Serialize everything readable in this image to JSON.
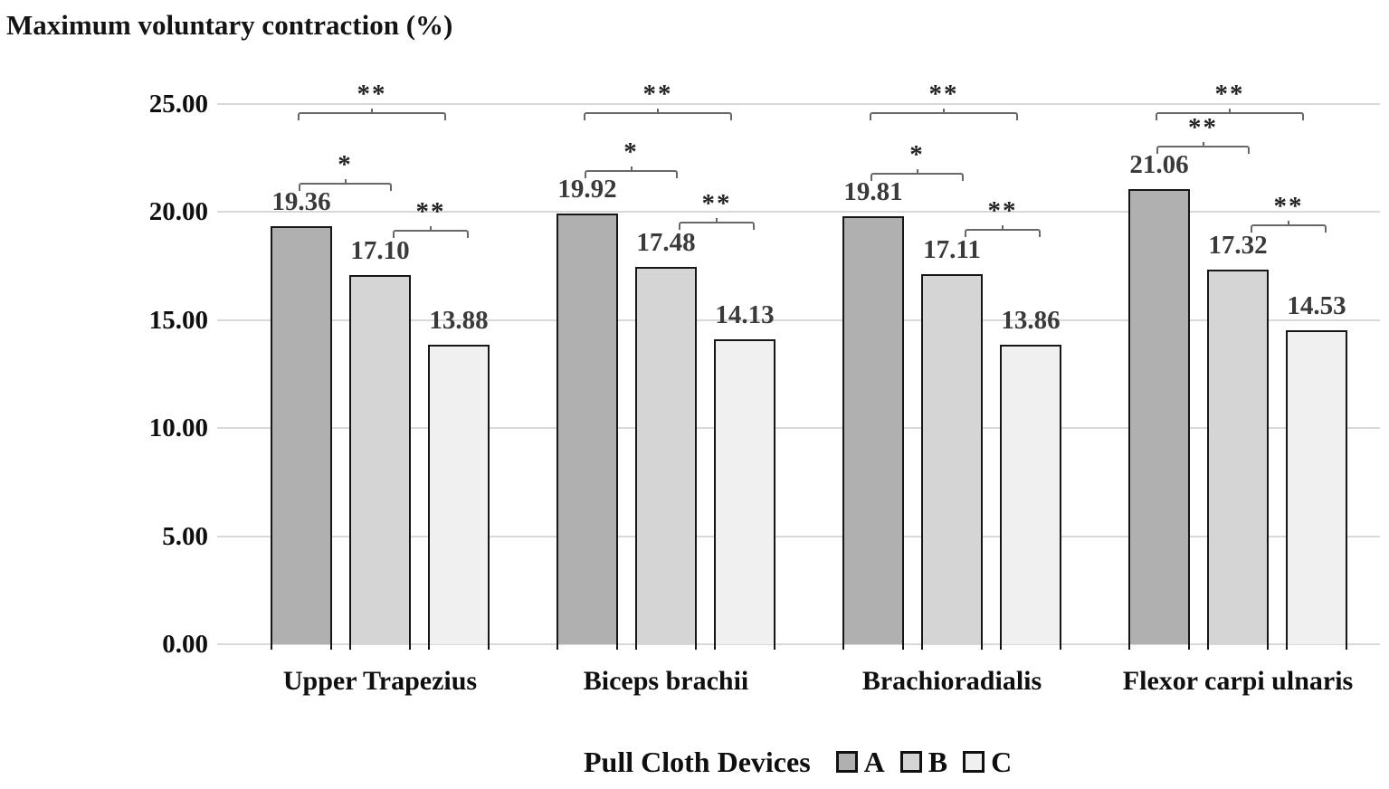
{
  "title": "Maximum voluntary contraction (%)",
  "chart_data": {
    "type": "bar",
    "title": "Maximum voluntary contraction (%)",
    "categories": [
      "Upper Trapezius",
      "Biceps brachii",
      "Brachioradialis",
      "Flexor carpi ulnaris"
    ],
    "series": [
      {
        "name": "A",
        "color": "#b0b0b0",
        "values": [
          19.36,
          19.92,
          19.81,
          21.06
        ]
      },
      {
        "name": "B",
        "color": "#d5d5d5",
        "values": [
          17.1,
          17.48,
          17.11,
          17.32
        ]
      },
      {
        "name": "C",
        "color": "#f0f0f0",
        "values": [
          13.88,
          14.13,
          13.86,
          14.53
        ]
      }
    ],
    "y_ticks": [
      "25.00",
      "20.00",
      "15.00",
      "10.00",
      "5.00",
      "0.00"
    ],
    "ylim": [
      0,
      25
    ],
    "xlabel": "",
    "ylabel": "Maximum voluntary contraction (%)",
    "grid": true,
    "significance": [
      {
        "category_index": 0,
        "pair": [
          0,
          2
        ],
        "label": "**"
      },
      {
        "category_index": 0,
        "pair": [
          0,
          1
        ],
        "label": "*"
      },
      {
        "category_index": 0,
        "pair": [
          1,
          2
        ],
        "label": "**"
      },
      {
        "category_index": 1,
        "pair": [
          0,
          2
        ],
        "label": "**"
      },
      {
        "category_index": 1,
        "pair": [
          0,
          1
        ],
        "label": "*"
      },
      {
        "category_index": 1,
        "pair": [
          1,
          2
        ],
        "label": "**"
      },
      {
        "category_index": 2,
        "pair": [
          0,
          2
        ],
        "label": "**"
      },
      {
        "category_index": 2,
        "pair": [
          0,
          1
        ],
        "label": "*"
      },
      {
        "category_index": 2,
        "pair": [
          1,
          2
        ],
        "label": "**"
      },
      {
        "category_index": 3,
        "pair": [
          0,
          2
        ],
        "label": "**"
      },
      {
        "category_index": 3,
        "pair": [
          0,
          1
        ],
        "label": "**"
      },
      {
        "category_index": 3,
        "pair": [
          1,
          2
        ],
        "label": "**"
      }
    ],
    "legend": {
      "title": "Pull Cloth Devices",
      "entries": [
        "A",
        "B",
        "C"
      ],
      "position": "bottom"
    },
    "colors": {
      "gridline": "#d9d9d9",
      "bar_border": "#161616",
      "bracket": "#686868",
      "value_label_text": "#3a3a3a",
      "axis_text": "#0f0f0f"
    }
  }
}
